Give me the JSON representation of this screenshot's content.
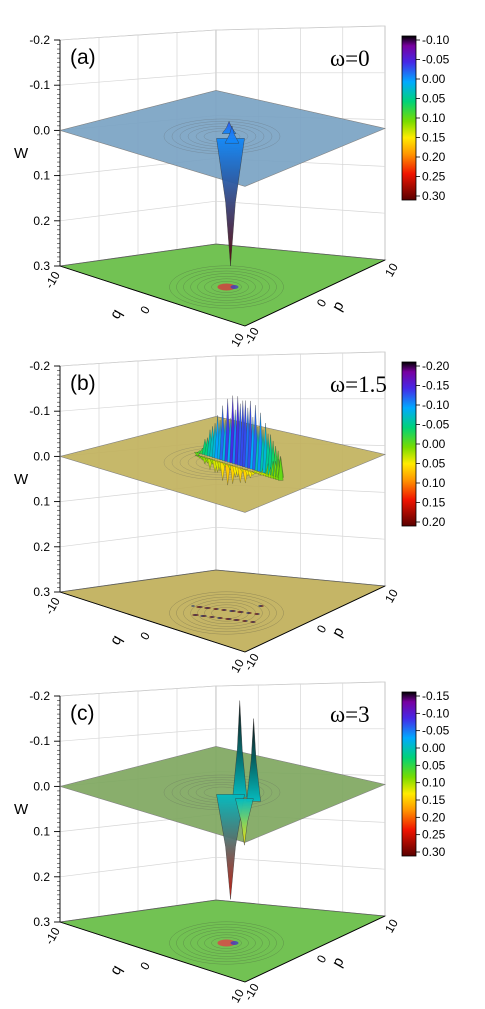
{
  "chart_data": [
    {
      "type": "surface3d",
      "panel_label": "(a)",
      "parameter_label": "ω=0",
      "zlabel": "W",
      "xlabel": "q",
      "ylabel": "p",
      "x_ticks": [
        "-10",
        "0",
        "10"
      ],
      "y_ticks": [
        "10",
        "0",
        "-10"
      ],
      "z_ticks": [
        "-0.2",
        "-0.1",
        "0.0",
        "0.1",
        "0.2",
        "0.3"
      ],
      "zlim": [
        -0.2,
        0.3
      ],
      "xlim": [
        -10,
        10
      ],
      "ylim": [
        -10,
        10
      ],
      "plane_color": "#7aa3c4",
      "floor_color": "#6bbf4a",
      "colorbar": {
        "ticks": [
          "-0.10",
          "-0.05",
          "0.00",
          "0.05",
          "0.10",
          "0.15",
          "0.20",
          "0.25",
          "0.30"
        ],
        "range": [
          -0.1,
          0.3
        ]
      },
      "features": [
        {
          "kind": "well",
          "x": 0,
          "y": 0,
          "value": 0.3
        },
        {
          "kind": "peak",
          "x": -1,
          "y": 1,
          "value": -0.02
        },
        {
          "kind": "peak",
          "x": 1,
          "y": -1,
          "value": -0.01
        }
      ]
    },
    {
      "type": "surface3d",
      "panel_label": "(b)",
      "parameter_label": "ω=1.5",
      "zlabel": "W",
      "xlabel": "q",
      "ylabel": "p",
      "x_ticks": [
        "-10",
        "0",
        "10"
      ],
      "y_ticks": [
        "10",
        "0",
        "-10"
      ],
      "z_ticks": [
        "-0.2",
        "-0.1",
        "0.0",
        "0.1",
        "0.2",
        "0.3"
      ],
      "zlim": [
        -0.2,
        0.3
      ],
      "xlim": [
        -10,
        10
      ],
      "ylim": [
        -10,
        10
      ],
      "plane_color": "#c2b25e",
      "floor_color": "#c2b25e",
      "colorbar": {
        "ticks": [
          "-0.20",
          "-0.15",
          "-0.10",
          "-0.05",
          "0.00",
          "0.05",
          "0.10",
          "0.15",
          "0.20"
        ],
        "range": [
          -0.2,
          0.2
        ]
      },
      "features": [
        {
          "kind": "oscillating-band",
          "x_range": [
            -4,
            5
          ],
          "max_value": -0.14,
          "min_value": 0.07
        }
      ]
    },
    {
      "type": "surface3d",
      "panel_label": "(c)",
      "parameter_label": "ω=3",
      "zlabel": "W",
      "xlabel": "q",
      "ylabel": "p",
      "x_ticks": [
        "-10",
        "0",
        "10"
      ],
      "y_ticks": [
        "10",
        "0",
        "-10"
      ],
      "z_ticks": [
        "-0.2",
        "-0.1",
        "0.0",
        "0.1",
        "0.2",
        "0.3"
      ],
      "zlim": [
        -0.2,
        0.3
      ],
      "xlim": [
        -10,
        10
      ],
      "ylim": [
        -10,
        10
      ],
      "plane_color": "#7fa860",
      "floor_color": "#6bbf4a",
      "colorbar": {
        "ticks": [
          "-0.15",
          "-0.10",
          "-0.05",
          "0.00",
          "0.05",
          "0.10",
          "0.15",
          "0.20",
          "0.25",
          "0.30"
        ],
        "range": [
          -0.15,
          0.3
        ]
      },
      "features": [
        {
          "kind": "peak",
          "x": 1,
          "y": 0,
          "value": -0.19
        },
        {
          "kind": "peak",
          "x": 2.5,
          "y": 0,
          "value": -0.15
        },
        {
          "kind": "well",
          "x": 0,
          "y": 0,
          "value": 0.25
        },
        {
          "kind": "well",
          "x": 1.5,
          "y": 0,
          "value": 0.13
        }
      ]
    }
  ]
}
